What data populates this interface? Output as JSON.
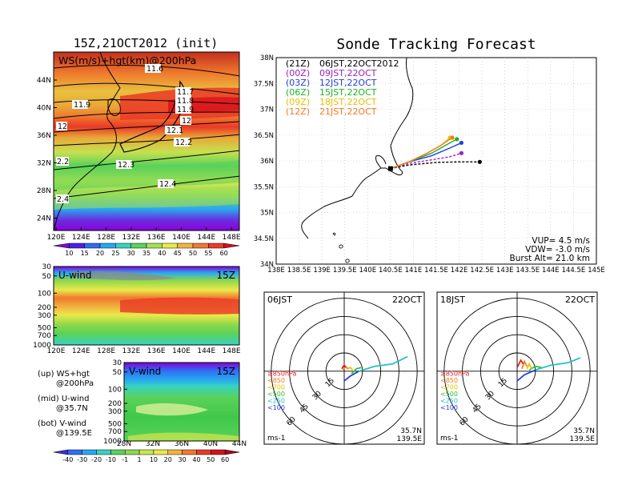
{
  "left": {
    "title": "15Z,21OCT2012 (init)",
    "top_panel": {
      "label": "WS(m/s)+hgt(km)@200hPa",
      "lat_ticks": [
        "44N",
        "40N",
        "36N",
        "32N",
        "28N",
        "24N"
      ],
      "lon_ticks": [
        "120E",
        "124E",
        "128E",
        "132E",
        "136E",
        "140E",
        "144E",
        "148E"
      ],
      "height_labels": [
        "11.6",
        "11.7",
        "11.8",
        "11.9",
        "11.9",
        "12",
        "12",
        "12.1",
        "12.2",
        "12.3",
        "12.4",
        "2.2",
        "2.4"
      ]
    },
    "ws_colorbar": {
      "ticks": [
        "10",
        "15",
        "20",
        "25",
        "30",
        "35",
        "40",
        "45",
        "50",
        "55",
        "60"
      ],
      "colors": [
        "#8a00d8",
        "#4e1fe8",
        "#2f6cf2",
        "#27a8f0",
        "#37d2c2",
        "#5ad25a",
        "#a6e052",
        "#e9e94a",
        "#f2b440",
        "#f07a2e",
        "#ea3a26",
        "#d8101c"
      ]
    },
    "u_panel": {
      "label": "U-wind",
      "time": "15Z",
      "p_ticks": [
        "30",
        "50",
        "100",
        "200",
        "300",
        "500",
        "700",
        "1000"
      ],
      "lon_ticks": [
        "120E",
        "124E",
        "128E",
        "132E",
        "136E",
        "140E",
        "144E",
        "148E"
      ]
    },
    "v_panel": {
      "label": "V-wind",
      "time": "15Z",
      "p_ticks": [
        "30",
        "50",
        "100",
        "200",
        "300",
        "500",
        "700",
        "1000"
      ],
      "lat_ticks": [
        "28N",
        "32N",
        "36N",
        "40N",
        "44N"
      ]
    },
    "legend": [
      {
        "line1": "(up) WS+hgt",
        "line2": "@200hPa"
      },
      {
        "line1": "(mid) U-wind",
        "line2": "@35.7N"
      },
      {
        "line1": "(bot) V-wind",
        "line2": "@139.5E"
      }
    ],
    "uv_colorbar": {
      "ticks": [
        "-40",
        "-30",
        "-20",
        "-10",
        "-1",
        "1",
        "10",
        "20",
        "30",
        "40",
        "50",
        "60"
      ],
      "colors": [
        "#3c2fd8",
        "#2f6cf2",
        "#27a8f0",
        "#37d2c2",
        "#5ad25a",
        "#8fd84a",
        "#c8e84e",
        "#e9e94a",
        "#f2b440",
        "#f07a2e",
        "#ea3a26",
        "#d8101c",
        "#b00018"
      ]
    }
  },
  "right": {
    "title": "Sonde Tracking Forecast",
    "map": {
      "lat_ticks": [
        "38N",
        "37.5N",
        "37N",
        "36.5N",
        "36N",
        "35.5N",
        "35N",
        "34.5N",
        "34N"
      ],
      "lon_ticks": [
        "138E",
        "138.5E",
        "139E",
        "139.5E",
        "140E",
        "140.5E",
        "141E",
        "141.5E",
        "142E",
        "142.5E",
        "143E",
        "143.5E",
        "144E",
        "144.5E",
        "145E"
      ],
      "legend": [
        {
          "code": "(21Z)",
          "time": "06JST,22OCT2012",
          "color": "#000000"
        },
        {
          "code": "(00Z)",
          "time": "09JST,22OCT",
          "color": "#a020c0"
        },
        {
          "code": "(03Z)",
          "time": "12JST,22OCT",
          "color": "#1f3fe0"
        },
        {
          "code": "(06Z)",
          "time": "15JST,22OCT",
          "color": "#20b020"
        },
        {
          "code": "(09Z)",
          "time": "18JST,22OCT",
          "color": "#e8c000"
        },
        {
          "code": "(12Z)",
          "time": "21JST,22OCT",
          "color": "#f07a20"
        }
      ],
      "params": [
        "VUP=  4.5 m/s",
        "VDW= -3.0 m/s",
        "Burst Alt= 21.0 km"
      ]
    },
    "hodo1": {
      "time": "06JST",
      "date": "22OCT",
      "ring_labels": [
        "15",
        "30",
        "45",
        "60"
      ],
      "levels": [
        {
          "label": "≥850hPa",
          "color": "#e02020"
        },
        {
          "label": "<850",
          "color": "#f08020"
        },
        {
          "label": "<700",
          "color": "#e8c000"
        },
        {
          "label": "<500",
          "color": "#30c030"
        },
        {
          "label": "<250",
          "color": "#20c0d0"
        },
        {
          "label": "<100",
          "color": "#2040e0"
        }
      ],
      "units": "ms-1",
      "lat": "35.7N",
      "lon": "139.5E"
    },
    "hodo2": {
      "time": "18JST",
      "date": "22OCT",
      "ring_labels": [
        "15",
        "30",
        "45",
        "60"
      ],
      "levels": [
        {
          "label": "≥850hPa",
          "color": "#e02020"
        },
        {
          "label": "<850",
          "color": "#f08020"
        },
        {
          "label": "<700",
          "color": "#e8c000"
        },
        {
          "label": "<500",
          "color": "#30c030"
        },
        {
          "label": "<250",
          "color": "#20c0d0"
        },
        {
          "label": "<100",
          "color": "#2040e0"
        }
      ],
      "units": "ms-1",
      "lat": "35.7N",
      "lon": "139.5E"
    }
  },
  "chart_data": [
    {
      "type": "heatmap",
      "title": "WS(m/s)+hgt(km)@200hPa",
      "x_range": [
        120,
        149
      ],
      "y_range": [
        22,
        47
      ],
      "height_contours_km": [
        11.6,
        11.7,
        11.8,
        11.9,
        12.0,
        12.1,
        12.2,
        12.3,
        12.4
      ],
      "jet_max_ws": 60
    },
    {
      "type": "heatmap",
      "title": "U-wind",
      "x_range": [
        120,
        149
      ],
      "y_range_hPa": [
        1000,
        30
      ]
    },
    {
      "type": "heatmap",
      "title": "V-wind",
      "x_range": [
        28,
        44
      ],
      "y_range_hPa": [
        1000,
        30
      ]
    },
    {
      "type": "line",
      "title": "Sonde Tracking Forecast",
      "x_range": [
        138,
        145
      ],
      "y_range": [
        34,
        38
      ],
      "launch": {
        "x": 140.5,
        "y": 35.85
      },
      "series": [
        {
          "name": "(21Z) 06JST,22OCT2012",
          "x": [
            140.5,
            140.9,
            141.5,
            142.0,
            142.45
          ],
          "y": [
            35.85,
            35.92,
            35.97,
            35.98,
            35.98
          ]
        },
        {
          "name": "(00Z) 09JST,22OCT",
          "x": [
            140.5,
            140.9,
            141.4,
            141.8,
            142.05
          ],
          "y": [
            35.85,
            35.95,
            36.02,
            36.08,
            36.15
          ]
        },
        {
          "name": "(03Z) 12JST,22OCT",
          "x": [
            140.5,
            140.9,
            141.4,
            141.8,
            142.05
          ],
          "y": [
            35.85,
            35.98,
            36.1,
            36.25,
            36.35
          ]
        },
        {
          "name": "(06Z) 15JST,22OCT",
          "x": [
            140.5,
            140.9,
            141.4,
            141.7,
            141.95
          ],
          "y": [
            35.85,
            35.98,
            36.15,
            36.3,
            36.42
          ]
        },
        {
          "name": "(09Z) 18JST,22OCT",
          "x": [
            140.5,
            140.9,
            141.3,
            141.6,
            141.8
          ],
          "y": [
            35.85,
            35.98,
            36.15,
            36.3,
            36.45
          ]
        },
        {
          "name": "(12Z) 21JST,22OCT",
          "x": [
            140.5,
            140.9,
            141.3,
            141.6,
            141.85
          ],
          "y": [
            35.85,
            35.98,
            36.15,
            36.3,
            36.45
          ]
        }
      ]
    },
    {
      "type": "line",
      "title": "06JST 22OCT",
      "rings_ms": [
        15,
        30,
        45,
        60
      ],
      "series": [
        {
          "name": "<100",
          "u": [
            0,
            5,
            12
          ],
          "v": [
            -8,
            -4,
            0
          ]
        },
        {
          "name": "<250",
          "u": [
            12,
            25,
            40,
            52
          ],
          "v": [
            0,
            4,
            6,
            12
          ]
        },
        {
          "name": "<500",
          "u": [
            6,
            10,
            14
          ],
          "v": [
            -2,
            2,
            3
          ]
        },
        {
          "name": "<700",
          "u": [
            2,
            5,
            7
          ],
          "v": [
            2,
            3,
            1
          ]
        },
        {
          "name": "<850",
          "u": [
            -1,
            1,
            3
          ],
          "v": [
            1,
            4,
            2
          ]
        },
        {
          "name": "≥850hPa",
          "u": [
            -2,
            0,
            1
          ],
          "v": [
            2,
            5,
            3
          ]
        }
      ]
    },
    {
      "type": "line",
      "title": "18JST 22OCT",
      "rings_ms": [
        15,
        30,
        45,
        60
      ],
      "series": [
        {
          "name": "<100",
          "u": [
            0,
            6,
            15
          ],
          "v": [
            -8,
            -3,
            1
          ]
        },
        {
          "name": "<250",
          "u": [
            15,
            28,
            42,
            52
          ],
          "v": [
            1,
            5,
            7,
            11
          ]
        },
        {
          "name": "<500",
          "u": [
            10,
            15,
            20
          ],
          "v": [
            1,
            4,
            3
          ]
        },
        {
          "name": "<700",
          "u": [
            8,
            10,
            12
          ],
          "v": [
            2,
            6,
            2
          ]
        },
        {
          "name": "<850",
          "u": [
            4,
            6,
            8
          ],
          "v": [
            2,
            8,
            4
          ]
        },
        {
          "name": "≥850hPa",
          "u": [
            0,
            3,
            5
          ],
          "v": [
            3,
            9,
            6
          ]
        }
      ]
    }
  ]
}
